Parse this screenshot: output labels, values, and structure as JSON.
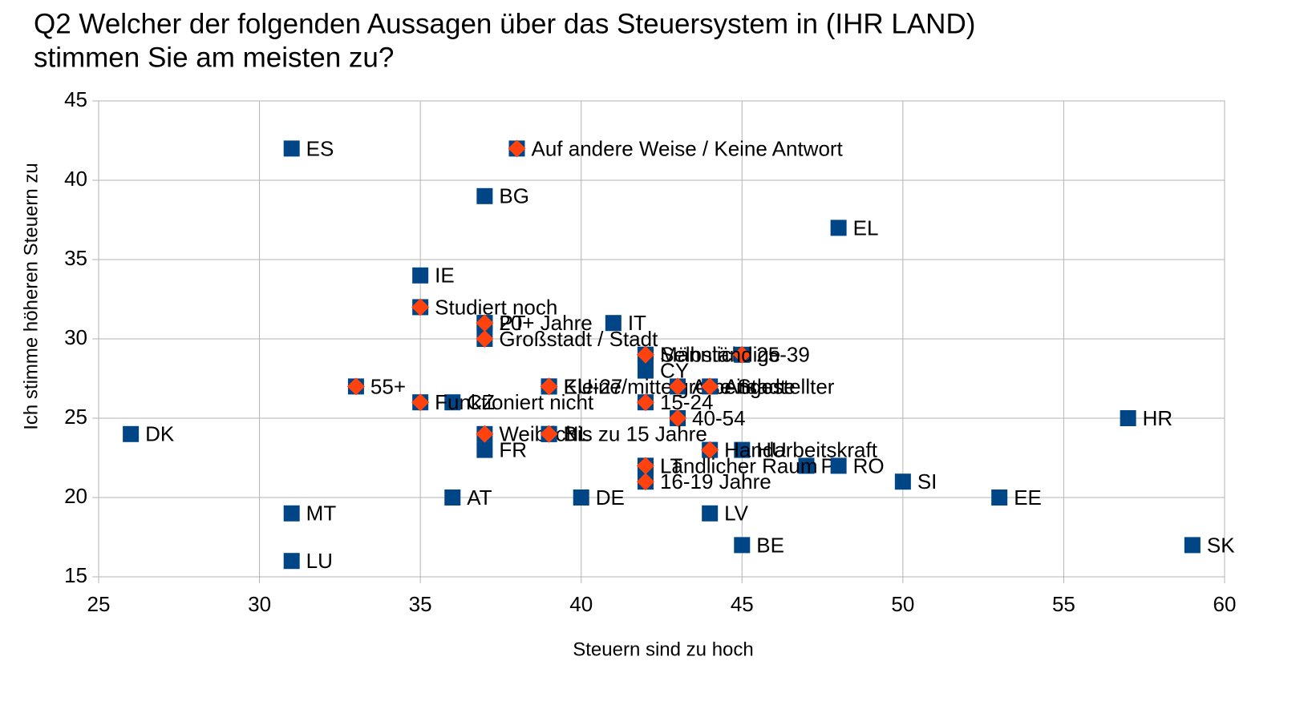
{
  "chart_data": {
    "type": "scatter",
    "title": "Q2 Welcher der folgenden Aussagen über das Steuersystem in (IHR LAND)",
    "subtitle": "stimmen Sie am meisten zu?",
    "xlabel": "Steuern sind zu hoch",
    "ylabel": "Ich stimme höheren Steuern zu",
    "xlim": [
      25,
      60
    ],
    "xticks": [
      25,
      30,
      35,
      40,
      45,
      50,
      55,
      60
    ],
    "ylim": [
      15,
      45
    ],
    "yticks": [
      15,
      20,
      25,
      30,
      35,
      40,
      45
    ],
    "grid": true,
    "series": [
      {
        "color": "#004586",
        "marker": "square",
        "labels": [
          "ES",
          "BG",
          "EL",
          "IE",
          "IT",
          "PT",
          "CY",
          "CZ",
          "DK",
          "FR",
          "NL",
          "HR",
          "HU",
          "LT",
          "PL",
          "RO",
          "AT",
          "DE",
          "SI",
          "EE",
          "LV",
          "BE",
          "MT",
          "LU",
          "SK"
        ],
        "x": [
          31,
          37,
          48,
          35,
          41,
          37,
          42,
          36,
          26,
          37,
          39,
          57,
          45,
          42,
          47,
          48,
          36,
          40,
          50,
          53,
          44,
          45,
          31,
          31,
          59
        ],
        "values": [
          42,
          39,
          37,
          34,
          31,
          31,
          28,
          26,
          24,
          23,
          24,
          25,
          23,
          22,
          22,
          22,
          20,
          20,
          21,
          20,
          19,
          17,
          19,
          16,
          17
        ]
      },
      {
        "color": "#ff420e",
        "marker": "diamond",
        "labels": [
          "Auf andere Weise / Keine Antwort",
          "Studiert noch",
          "20+ Jahre",
          "Großstadt / Stadt",
          "Männlich",
          "25-39",
          "Selbständige",
          "55+",
          "Funktioniert nicht",
          "EU-27",
          "Kleine/mittelgroße Stadt",
          "Arbeitslose",
          "Angestellter",
          "15-24",
          "40-54",
          "Weiblich",
          "Bis zu 15 Jahre",
          "Handarbeitskraft",
          "Ländlicher Raum",
          "16-19 Jahre"
        ],
        "x": [
          38,
          35,
          37,
          37,
          42,
          45,
          42,
          33,
          35,
          39,
          39,
          43,
          44,
          42,
          43,
          37,
          39,
          44,
          42,
          42
        ],
        "values": [
          42,
          32,
          31,
          30,
          29,
          29,
          29,
          27,
          26,
          27,
          27,
          27,
          27,
          26,
          25,
          24,
          24,
          23,
          22,
          21
        ]
      }
    ]
  }
}
